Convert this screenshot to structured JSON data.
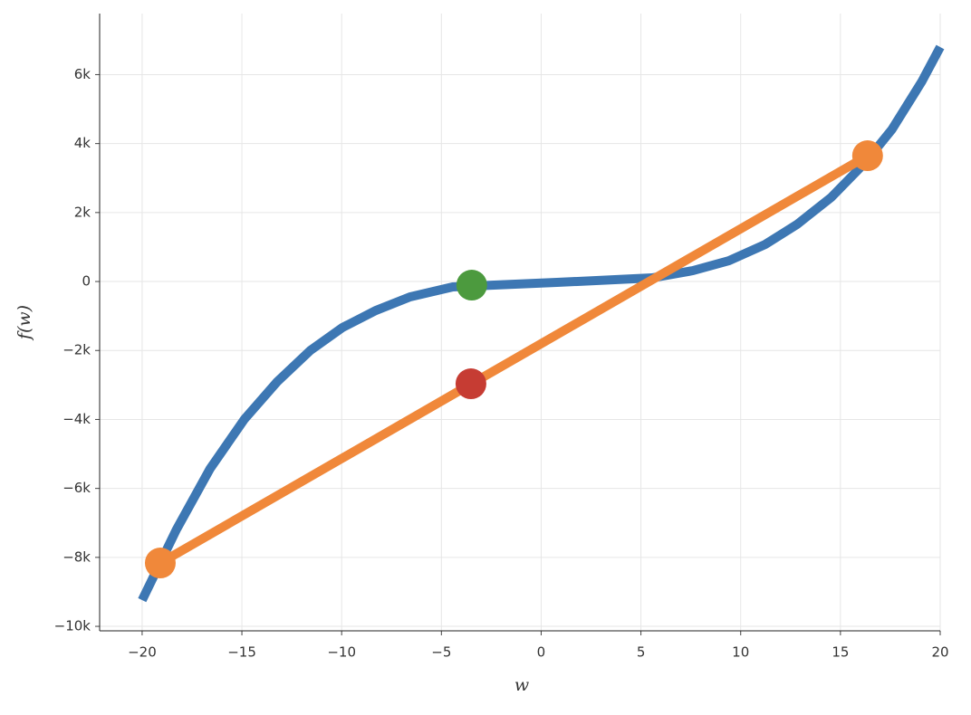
{
  "chart_data": {
    "type": "line",
    "x_label": "w",
    "y_label": "f(w)",
    "xlim": [
      -22.13,
      20
    ],
    "ylim": [
      -10130,
      7770
    ],
    "xticks": [
      {
        "value": -20,
        "label": "−20"
      },
      {
        "value": -15,
        "label": "−15"
      },
      {
        "value": -10,
        "label": "−10"
      },
      {
        "value": -5,
        "label": "−5"
      },
      0,
      5,
      10,
      15,
      20
    ],
    "yticks": [
      {
        "value": -10000,
        "label": "−10k"
      },
      {
        "value": -8000,
        "label": "−8k"
      },
      {
        "value": -6000,
        "label": "−6k"
      },
      {
        "value": -4000,
        "label": "−4k"
      },
      {
        "value": -2000,
        "label": "−2k"
      },
      0,
      {
        "value": 2000,
        "label": "2k"
      },
      {
        "value": 4000,
        "label": "4k"
      },
      {
        "value": 6000,
        "label": "6k"
      }
    ],
    "grid": true,
    "series": [
      {
        "color": "#3d77b3",
        "mode": "lines",
        "x": [
          -20,
          -18.28,
          -16.6,
          -14.87,
          -13.24,
          -11.56,
          -9.97,
          -8.29,
          -6.57,
          -4.43,
          0.79,
          5.56,
          7.6,
          9.41,
          11.23,
          12.82,
          14.54,
          16.22,
          17.58,
          19.08,
          20
        ],
        "values": [
          -9239,
          -7192,
          -5433,
          -3990,
          -2913,
          -1995,
          -1339,
          -840,
          -446,
          -157,
          -26,
          105,
          315,
          604,
          1076,
          1654,
          2441,
          3438,
          4409,
          5800,
          6798
        ]
      },
      {
        "color": "#f0883a",
        "mode": "lines+markers",
        "x": [
          -19.09,
          16.36
        ],
        "values": [
          -8163,
          3648
        ]
      },
      {
        "color": "#4c9a3e",
        "mode": "markers",
        "x": [
          -3.48
        ],
        "values": [
          -105
        ]
      },
      {
        "color": "#c63c33",
        "mode": "markers",
        "x": [
          -3.52
        ],
        "values": [
          -2966
        ]
      }
    ]
  }
}
